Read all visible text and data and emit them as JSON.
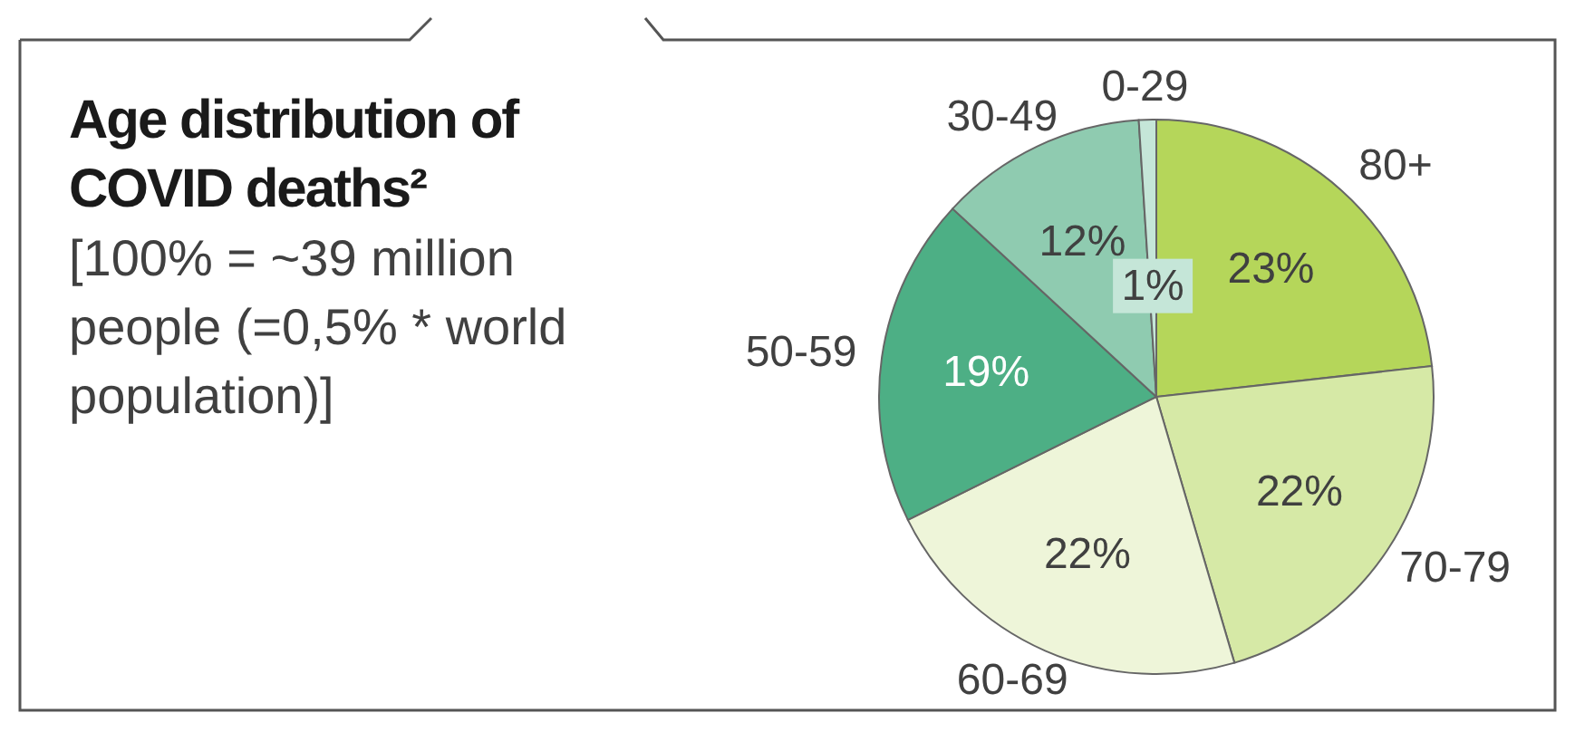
{
  "chart_data": {
    "type": "pie",
    "title": "Age distribution of COVID deaths²",
    "subtitle": "[100% = ~39 million people (=0,5% * world population)]",
    "categories": [
      "80+",
      "70-79",
      "60-69",
      "50-59",
      "30-49",
      "0-29"
    ],
    "values": [
      23,
      22,
      22,
      19,
      12,
      1
    ],
    "value_labels": [
      "23%",
      "22%",
      "22%",
      "19%",
      "12%",
      "1%"
    ],
    "colors": [
      "#b5d65a",
      "#d6e9a6",
      "#eef5d9",
      "#4daf85",
      "#8fcbb0",
      "#c5e6d8"
    ],
    "legend": false
  }
}
